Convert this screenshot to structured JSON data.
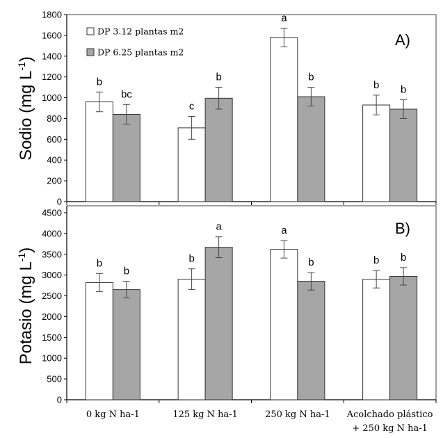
{
  "chart_data": [
    {
      "type": "bar",
      "panel_label": "A)",
      "ylabel": "Sodio (mg L",
      "ylabel_sup": "-1",
      "ylabel_close": ")",
      "ylim": [
        0,
        1800
      ],
      "yticks": [
        0,
        200,
        400,
        600,
        800,
        1000,
        1200,
        1400,
        1600,
        1800
      ],
      "series": [
        {
          "name": "DP 3.12 plantas m2",
          "color": "#ffffff",
          "values": [
            960,
            710,
            1580,
            930
          ],
          "errors": [
            95,
            110,
            90,
            95
          ],
          "letters": [
            "b",
            "c",
            "a",
            "b"
          ]
        },
        {
          "name": "DP 6.25 plantas m2",
          "color": "#a6a6a6",
          "values": [
            840,
            995,
            1010,
            890
          ],
          "errors": [
            95,
            105,
            90,
            90
          ],
          "letters": [
            "bc",
            "b",
            "b",
            "b"
          ]
        }
      ]
    },
    {
      "type": "bar",
      "panel_label": "B)",
      "ylabel": "Potasio (mg L",
      "ylabel_sup": "-1",
      "ylabel_close": ")",
      "ylim": [
        0,
        4500
      ],
      "yticks": [
        0,
        500,
        1000,
        1500,
        2000,
        2500,
        3000,
        3500,
        4000,
        4500
      ],
      "series": [
        {
          "name": "DP 3.12 plantas m2",
          "color": "#ffffff",
          "values": [
            2820,
            2900,
            3620,
            2900
          ],
          "errors": [
            220,
            250,
            210,
            210
          ],
          "letters": [
            "b",
            "b",
            "a",
            "b"
          ]
        },
        {
          "name": "DP 6.25 plantas m2",
          "color": "#a6a6a6",
          "values": [
            2650,
            3670,
            2850,
            2970
          ],
          "errors": [
            200,
            250,
            210,
            210
          ],
          "letters": [
            "b",
            "a",
            "b",
            "b"
          ]
        }
      ]
    }
  ],
  "categories": [
    {
      "line1": "0 kg N ha-1",
      "line2": ""
    },
    {
      "line1": "125 kg N ha-1",
      "line2": ""
    },
    {
      "line1": "250 kg N ha-1",
      "line2": ""
    },
    {
      "line1": "Acolchado plástico",
      "line2": "+ 250 kg N ha-1"
    }
  ],
  "legend": {
    "items": [
      "DP 3.12 plantas m2",
      "DP 6.25 plantas m2"
    ],
    "swatch_colors": [
      "#ffffff",
      "#a6a6a6"
    ]
  },
  "colors": {
    "axis": "#000000",
    "frame": "#404040",
    "bar_outline": "#333333",
    "error_bar": "#444444"
  }
}
